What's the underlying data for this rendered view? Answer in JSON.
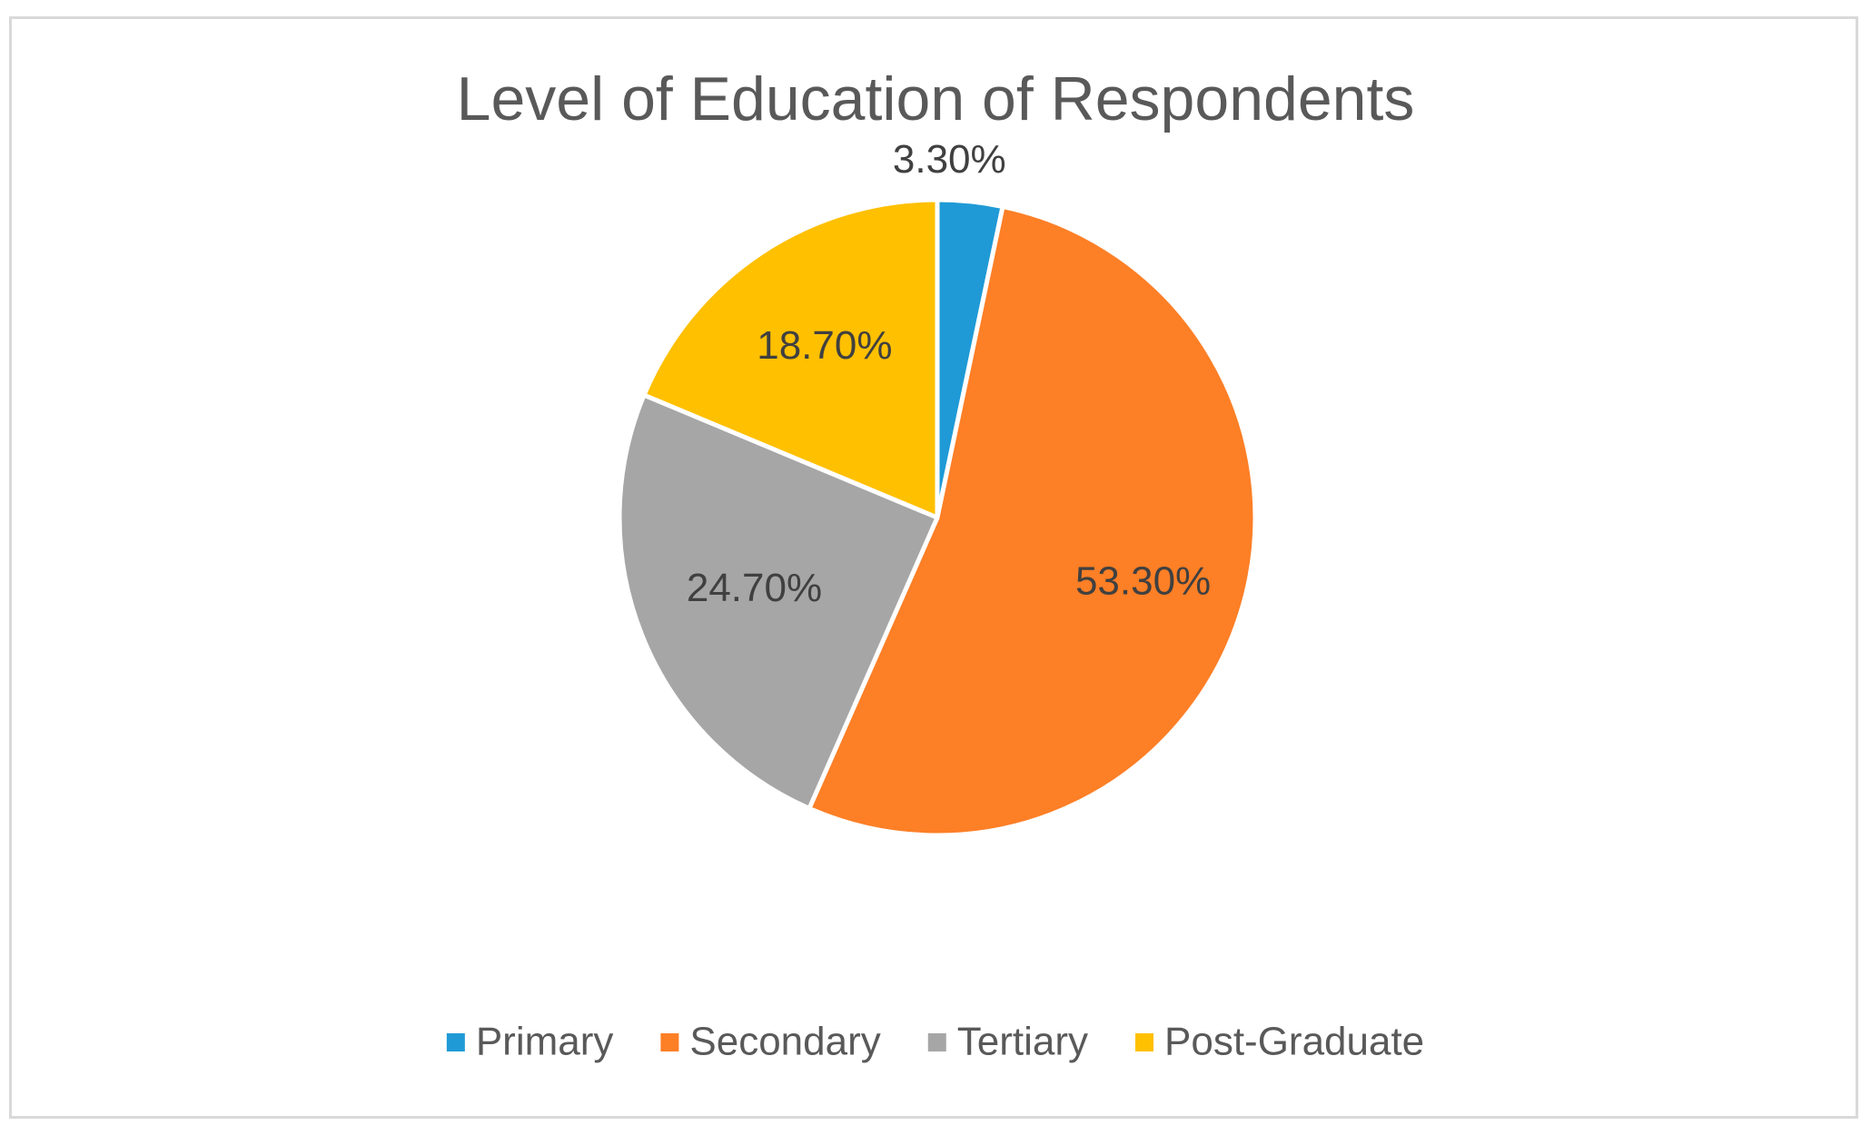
{
  "chart_data": {
    "type": "pie",
    "title": "Level of Education of Respondents",
    "categories": [
      "Primary",
      "Secondary",
      "Tertiary",
      "Post-Graduate"
    ],
    "values": [
      3.3,
      53.3,
      24.7,
      18.7
    ],
    "value_labels": [
      "3.30%",
      "53.30%",
      "24.70%",
      "18.70%"
    ],
    "colors": [
      "#1f9ad6",
      "#fd7f26",
      "#a6a6a6",
      "#ffc000"
    ],
    "start_angle_deg": 0,
    "direction": "clockwise",
    "legend_position": "bottom"
  }
}
